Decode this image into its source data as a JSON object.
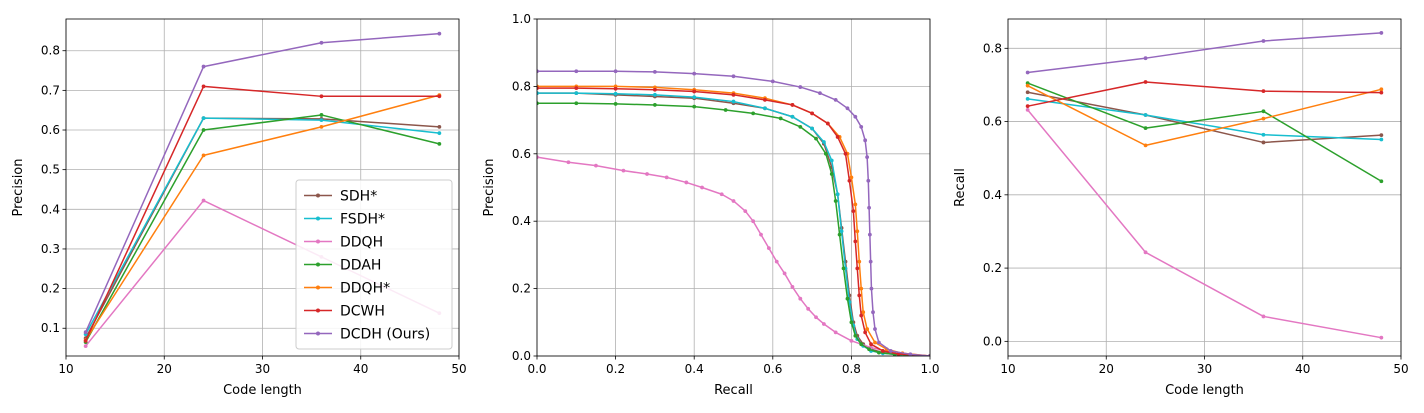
{
  "chart_data": [
    {
      "type": "line",
      "xlabel": "Code length",
      "ylabel": "Precision",
      "xlim": [
        10,
        50
      ],
      "ylim": [
        0.03,
        0.88
      ],
      "xticks": [
        10,
        20,
        30,
        40,
        50
      ],
      "yticks": [
        0.1,
        0.2,
        0.3,
        0.4,
        0.5,
        0.6,
        0.7,
        0.8
      ],
      "grid": true,
      "legend": "lower-right",
      "series": [
        {
          "name": "SDH*",
          "color": "#8c564b",
          "x": [
            12,
            24,
            36,
            48
          ],
          "y": [
            0.075,
            0.63,
            0.628,
            0.608
          ]
        },
        {
          "name": "FSDH*",
          "color": "#17becf",
          "x": [
            12,
            24,
            36,
            48
          ],
          "y": [
            0.085,
            0.63,
            0.625,
            0.592
          ]
        },
        {
          "name": "DDQH",
          "color": "#e377c2",
          "x": [
            12,
            24,
            36,
            48
          ],
          "y": [
            0.055,
            0.422,
            0.28,
            0.138
          ]
        },
        {
          "name": "DDAH",
          "color": "#2ca02c",
          "x": [
            12,
            24,
            36,
            48
          ],
          "y": [
            0.065,
            0.6,
            0.638,
            0.565
          ]
        },
        {
          "name": "DDQH*",
          "color": "#ff7f0e",
          "x": [
            12,
            24,
            36,
            48
          ],
          "y": [
            0.07,
            0.536,
            0.608,
            0.688
          ]
        },
        {
          "name": "DCWH",
          "color": "#d62728",
          "x": [
            12,
            24,
            36,
            48
          ],
          "y": [
            0.068,
            0.71,
            0.685,
            0.685
          ]
        },
        {
          "name": "DCDH (Ours)",
          "color": "#9467bd",
          "x": [
            12,
            24,
            36,
            48
          ],
          "y": [
            0.09,
            0.76,
            0.82,
            0.843
          ]
        }
      ]
    },
    {
      "type": "line",
      "xlabel": "Recall",
      "ylabel": "Precision",
      "xlim": [
        0,
        1
      ],
      "ylim": [
        0,
        1
      ],
      "xticks": [
        0.0,
        0.2,
        0.4,
        0.6,
        0.8,
        1.0
      ],
      "yticks": [
        0.0,
        0.2,
        0.4,
        0.6,
        0.8,
        1.0
      ],
      "grid": true,
      "series": [
        {
          "color": "#8c564b",
          "x": [
            0.0,
            0.1,
            0.2,
            0.3,
            0.4,
            0.5,
            0.58,
            0.65,
            0.7,
            0.73,
            0.75,
            0.765,
            0.775,
            0.785,
            0.795,
            0.805,
            0.815,
            0.83,
            0.85,
            0.88,
            0.92,
            1.0
          ],
          "y": [
            0.78,
            0.78,
            0.775,
            0.77,
            0.765,
            0.75,
            0.735,
            0.71,
            0.675,
            0.63,
            0.56,
            0.48,
            0.38,
            0.28,
            0.18,
            0.1,
            0.06,
            0.035,
            0.02,
            0.01,
            0.005,
            0.0
          ]
        },
        {
          "color": "#17becf",
          "x": [
            0.0,
            0.1,
            0.2,
            0.3,
            0.4,
            0.5,
            0.58,
            0.65,
            0.7,
            0.73,
            0.75,
            0.765,
            0.775,
            0.785,
            0.795,
            0.805,
            0.815,
            0.83,
            0.85,
            0.88,
            0.92,
            1.0
          ],
          "y": [
            0.78,
            0.78,
            0.778,
            0.775,
            0.768,
            0.755,
            0.735,
            0.71,
            0.675,
            0.635,
            0.58,
            0.48,
            0.37,
            0.26,
            0.16,
            0.09,
            0.05,
            0.03,
            0.015,
            0.008,
            0.004,
            0.0
          ]
        },
        {
          "color": "#e377c2",
          "x": [
            0.0,
            0.08,
            0.15,
            0.22,
            0.28,
            0.33,
            0.38,
            0.42,
            0.47,
            0.5,
            0.53,
            0.55,
            0.57,
            0.59,
            0.61,
            0.63,
            0.65,
            0.67,
            0.69,
            0.71,
            0.73,
            0.76,
            0.8,
            0.85,
            0.9,
            1.0
          ],
          "y": [
            0.59,
            0.575,
            0.565,
            0.55,
            0.54,
            0.53,
            0.515,
            0.5,
            0.48,
            0.46,
            0.43,
            0.4,
            0.36,
            0.32,
            0.28,
            0.245,
            0.205,
            0.17,
            0.14,
            0.115,
            0.095,
            0.07,
            0.045,
            0.025,
            0.012,
            0.0
          ]
        },
        {
          "color": "#2ca02c",
          "x": [
            0.0,
            0.1,
            0.2,
            0.3,
            0.4,
            0.48,
            0.55,
            0.62,
            0.67,
            0.71,
            0.735,
            0.75,
            0.76,
            0.77,
            0.78,
            0.79,
            0.8,
            0.81,
            0.825,
            0.845,
            0.87,
            0.91,
            1.0
          ],
          "y": [
            0.75,
            0.75,
            0.748,
            0.745,
            0.74,
            0.73,
            0.72,
            0.705,
            0.68,
            0.645,
            0.6,
            0.54,
            0.46,
            0.36,
            0.26,
            0.17,
            0.1,
            0.06,
            0.035,
            0.02,
            0.01,
            0.005,
            0.0
          ]
        },
        {
          "color": "#ff7f0e",
          "x": [
            0.0,
            0.1,
            0.2,
            0.3,
            0.4,
            0.5,
            0.58,
            0.65,
            0.7,
            0.74,
            0.77,
            0.79,
            0.8,
            0.81,
            0.815,
            0.82,
            0.825,
            0.83,
            0.84,
            0.86,
            0.89,
            0.93,
            1.0
          ],
          "y": [
            0.8,
            0.8,
            0.8,
            0.797,
            0.79,
            0.78,
            0.765,
            0.745,
            0.72,
            0.69,
            0.65,
            0.6,
            0.53,
            0.45,
            0.37,
            0.28,
            0.2,
            0.13,
            0.08,
            0.04,
            0.02,
            0.008,
            0.0
          ]
        },
        {
          "color": "#d62728",
          "x": [
            0.0,
            0.1,
            0.2,
            0.3,
            0.4,
            0.5,
            0.58,
            0.65,
            0.7,
            0.74,
            0.765,
            0.785,
            0.795,
            0.805,
            0.81,
            0.815,
            0.82,
            0.825,
            0.835,
            0.85,
            0.88,
            0.92,
            1.0
          ],
          "y": [
            0.795,
            0.795,
            0.793,
            0.79,
            0.785,
            0.775,
            0.76,
            0.745,
            0.72,
            0.69,
            0.65,
            0.6,
            0.52,
            0.43,
            0.34,
            0.26,
            0.18,
            0.12,
            0.07,
            0.035,
            0.015,
            0.006,
            0.0
          ]
        },
        {
          "color": "#9467bd",
          "x": [
            0.0,
            0.1,
            0.2,
            0.3,
            0.4,
            0.5,
            0.6,
            0.67,
            0.72,
            0.76,
            0.79,
            0.81,
            0.825,
            0.835,
            0.84,
            0.843,
            0.845,
            0.847,
            0.849,
            0.851,
            0.855,
            0.86,
            0.87,
            0.9,
            0.95,
            1.0
          ],
          "y": [
            0.845,
            0.845,
            0.845,
            0.843,
            0.838,
            0.83,
            0.815,
            0.798,
            0.78,
            0.76,
            0.735,
            0.71,
            0.68,
            0.64,
            0.59,
            0.52,
            0.44,
            0.36,
            0.28,
            0.2,
            0.13,
            0.08,
            0.04,
            0.015,
            0.005,
            0.0
          ]
        }
      ]
    },
    {
      "type": "line",
      "xlabel": "Code length",
      "ylabel": "Recall",
      "xlim": [
        10,
        50
      ],
      "ylim": [
        -0.04,
        0.88
      ],
      "xticks": [
        10,
        20,
        30,
        40,
        50
      ],
      "yticks": [
        0.0,
        0.2,
        0.4,
        0.6,
        0.8
      ],
      "grid": true,
      "series": [
        {
          "color": "#8c564b",
          "x": [
            12,
            24,
            36,
            48
          ],
          "y": [
            0.68,
            0.618,
            0.543,
            0.563
          ]
        },
        {
          "color": "#17becf",
          "x": [
            12,
            24,
            36,
            48
          ],
          "y": [
            0.662,
            0.618,
            0.564,
            0.551
          ]
        },
        {
          "color": "#e377c2",
          "x": [
            12,
            24,
            36,
            48
          ],
          "y": [
            0.632,
            0.243,
            0.068,
            0.01
          ]
        },
        {
          "color": "#2ca02c",
          "x": [
            12,
            24,
            36,
            48
          ],
          "y": [
            0.705,
            0.582,
            0.628,
            0.437
          ]
        },
        {
          "color": "#ff7f0e",
          "x": [
            12,
            24,
            36,
            48
          ],
          "y": [
            0.698,
            0.535,
            0.608,
            0.688
          ]
        },
        {
          "color": "#d62728",
          "x": [
            12,
            24,
            36,
            48
          ],
          "y": [
            0.642,
            0.708,
            0.683,
            0.679
          ]
        },
        {
          "color": "#9467bd",
          "x": [
            12,
            24,
            36,
            48
          ],
          "y": [
            0.734,
            0.773,
            0.82,
            0.842
          ]
        }
      ]
    }
  ]
}
